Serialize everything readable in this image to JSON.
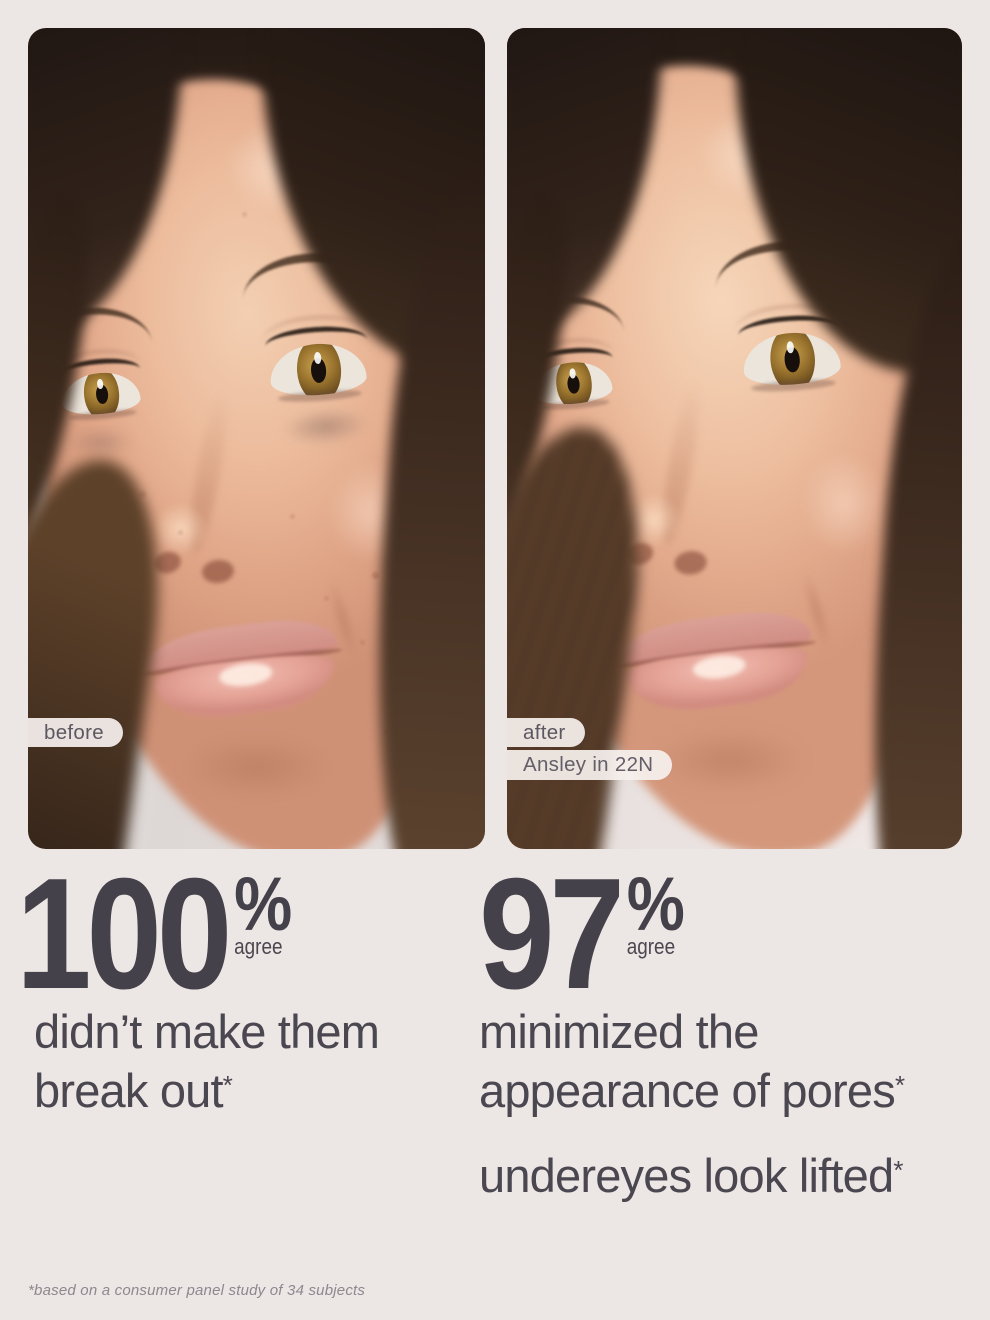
{
  "page": {
    "background_color": "#ece6e4"
  },
  "comparison": {
    "before": {
      "badge_label": "before"
    },
    "after": {
      "badge_label": "after",
      "shade_label": "Ansley in 22N"
    }
  },
  "stats": [
    {
      "value": "100",
      "percent_sign": "%",
      "agree_label": "agree",
      "claims": [
        {
          "text": "didn’t make them break out",
          "note": "*"
        }
      ]
    },
    {
      "value": "97",
      "percent_sign": "%",
      "agree_label": "agree",
      "claims": [
        {
          "text": "minimized the appearance of pores",
          "note": "*"
        },
        {
          "text": "undereyes look lifted",
          "note": "*"
        }
      ]
    }
  ],
  "footnote": "*based on a consumer panel study of 34 subjects",
  "colors": {
    "page_background": "#ece6e4",
    "stat_text": "#45414a",
    "claim_text": "#4b4750",
    "badge_background": "#f5efec",
    "badge_text": "#5d5761",
    "footnote_text": "#8d8890"
  }
}
